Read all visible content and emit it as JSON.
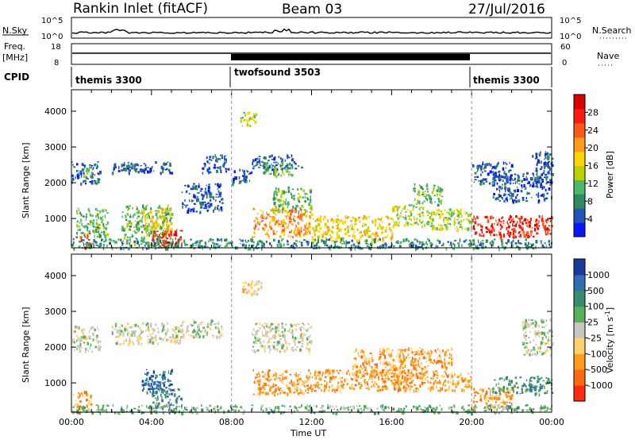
{
  "header": {
    "station": "Rankin Inlet (fitACF)",
    "beam": "Beam 03",
    "date": "27/Jul/2016"
  },
  "strips": {
    "nsky_label": "N.Sky",
    "nsearch_label": "N.Search",
    "noise_ticks_left": [
      "10^5",
      "10^0"
    ],
    "noise_ticks_right": [
      "10^5",
      "10^0"
    ],
    "freq_label": "Freq.",
    "freq_unit": "[MHz]",
    "freq_ticks": [
      "18",
      "8"
    ],
    "nave_label": "Nave",
    "nave_ticks": [
      "60",
      "0"
    ],
    "cpid_label": "CPID",
    "cpid_segments": [
      {
        "name": "themis 3300",
        "start": 0,
        "end": 8
      },
      {
        "name": "twofsound 3503",
        "start": 8,
        "end": 20
      },
      {
        "name": "themis 3300",
        "start": 20,
        "end": 24
      }
    ]
  },
  "chart_data": [
    {
      "type": "heatmap",
      "title": "",
      "xlabel": "Time UT",
      "ylabel": "Slant Range [km]",
      "xlim": [
        0,
        24
      ],
      "ylim": [
        180,
        4600
      ],
      "xticks": [
        "00:00",
        "04:00",
        "08:00",
        "12:00",
        "16:00",
        "20:00",
        "00:00"
      ],
      "yticks": [
        1000,
        2000,
        3000,
        4000
      ],
      "colorbar": {
        "label": "Power [dB]",
        "ticks": [
          "4",
          "8",
          "12",
          "16",
          "20",
          "24",
          "28"
        ],
        "colors": [
          "#0a14ff",
          "#2156b8",
          "#2f8a5e",
          "#4cb86a",
          "#b8d200",
          "#ffd400",
          "#ff9a1a",
          "#ff5a1a",
          "#ff1a10",
          "#dd0000"
        ]
      },
      "regions": [
        {
          "t": [
            0.0,
            1.4
          ],
          "r": [
            2000,
            2600
          ],
          "level": 1
        },
        {
          "t": [
            0.3,
            1.0
          ],
          "r": [
            2200,
            2500
          ],
          "level": 3
        },
        {
          "t": [
            0.2,
            1.8
          ],
          "r": [
            500,
            1300
          ],
          "level": 3
        },
        {
          "t": [
            0.4,
            1.0
          ],
          "r": [
            200,
            600
          ],
          "level": 7
        },
        {
          "t": [
            2.0,
            5.0
          ],
          "r": [
            2300,
            2600
          ],
          "level": 1
        },
        {
          "t": [
            2.5,
            3.5
          ],
          "r": [
            2350,
            2550
          ],
          "level": 2
        },
        {
          "t": [
            2.5,
            5.0
          ],
          "r": [
            300,
            1400
          ],
          "level": 3
        },
        {
          "t": [
            3.5,
            5.0
          ],
          "r": [
            700,
            1300
          ],
          "level": 5
        },
        {
          "t": [
            4.0,
            5.6
          ],
          "r": [
            200,
            700
          ],
          "level": 8
        },
        {
          "t": [
            5.5,
            7.5
          ],
          "r": [
            1200,
            2000
          ],
          "level": 1
        },
        {
          "t": [
            6.5,
            7.8
          ],
          "r": [
            2300,
            2800
          ],
          "level": 1
        },
        {
          "t": [
            8.0,
            9.0
          ],
          "r": [
            2000,
            2400
          ],
          "level": 1
        },
        {
          "t": [
            8.4,
            9.2
          ],
          "r": [
            3600,
            4000
          ],
          "level": 4
        },
        {
          "t": [
            9.0,
            11.5
          ],
          "r": [
            2400,
            2800
          ],
          "level": 1
        },
        {
          "t": [
            9.5,
            11.0
          ],
          "r": [
            2200,
            2600
          ],
          "level": 3
        },
        {
          "t": [
            10.0,
            12.0
          ],
          "r": [
            1200,
            1900
          ],
          "level": 3
        },
        {
          "t": [
            9.0,
            12.0
          ],
          "r": [
            500,
            1300
          ],
          "level": 6
        },
        {
          "t": [
            12.0,
            16.0
          ],
          "r": [
            400,
            1100
          ],
          "level": 5
        },
        {
          "t": [
            16.0,
            18.0
          ],
          "r": [
            800,
            1400
          ],
          "level": 4
        },
        {
          "t": [
            17.0,
            18.5
          ],
          "r": [
            1400,
            2000
          ],
          "level": 3
        },
        {
          "t": [
            18.0,
            20.0
          ],
          "r": [
            700,
            1300
          ],
          "level": 4
        },
        {
          "t": [
            20.0,
            22.0
          ],
          "r": [
            2000,
            2600
          ],
          "level": 1
        },
        {
          "t": [
            20.0,
            24.0
          ],
          "r": [
            500,
            1100
          ],
          "level": 8
        },
        {
          "t": [
            21.0,
            24.0
          ],
          "r": [
            1500,
            2300
          ],
          "level": 1
        },
        {
          "t": [
            23.0,
            24.0
          ],
          "r": [
            2000,
            2900
          ],
          "level": 1
        },
        {
          "t": [
            0.0,
            24.0
          ],
          "r": [
            180,
            450
          ],
          "level": 2
        }
      ]
    },
    {
      "type": "heatmap",
      "title": "",
      "xlabel": "Time UT",
      "ylabel": "Slant Range [km]",
      "xlim": [
        0,
        24
      ],
      "ylim": [
        180,
        4600
      ],
      "xticks": [
        "00:00",
        "04:00",
        "08:00",
        "12:00",
        "16:00",
        "20:00",
        "00:00"
      ],
      "yticks": [
        1000,
        2000,
        3000,
        4000
      ],
      "colorbar": {
        "label": "Velocity [m s^-1]",
        "ticks": [
          "1000",
          "500",
          "100",
          "25",
          "-25",
          "-100",
          "-500",
          "-1000"
        ],
        "colors": [
          "#1a3a9a",
          "#2f6fb0",
          "#3a8a6e",
          "#5ab05a",
          "#c8c8c0",
          "#ffd070",
          "#ff9a1a",
          "#ff6a10",
          "#ff2a10"
        ]
      },
      "regions": [
        {
          "t": [
            0.0,
            1.4
          ],
          "r": [
            1900,
            2600
          ],
          "level": 4
        },
        {
          "t": [
            0.0,
            1.0
          ],
          "r": [
            200,
            800
          ],
          "level": 6
        },
        {
          "t": [
            2.0,
            5.5
          ],
          "r": [
            2100,
            2700
          ],
          "level": 4
        },
        {
          "t": [
            3.5,
            5.0
          ],
          "r": [
            700,
            1400
          ],
          "level": 1
        },
        {
          "t": [
            4.0,
            5.5
          ],
          "r": [
            300,
            900
          ],
          "level": 2
        },
        {
          "t": [
            5.5,
            7.5
          ],
          "r": [
            2300,
            2800
          ],
          "level": 4
        },
        {
          "t": [
            8.5,
            9.5
          ],
          "r": [
            3500,
            3900
          ],
          "level": 5
        },
        {
          "t": [
            9.0,
            12.0
          ],
          "r": [
            1900,
            2700
          ],
          "level": 4
        },
        {
          "t": [
            9.0,
            12.0
          ],
          "r": [
            700,
            1400
          ],
          "level": 6
        },
        {
          "t": [
            12.0,
            17.0
          ],
          "r": [
            800,
            1400
          ],
          "level": 6
        },
        {
          "t": [
            14.0,
            19.0
          ],
          "r": [
            1200,
            2000
          ],
          "level": 6
        },
        {
          "t": [
            16.0,
            20.0
          ],
          "r": [
            800,
            1300
          ],
          "level": 6
        },
        {
          "t": [
            20.0,
            22.0
          ],
          "r": [
            300,
            900
          ],
          "level": 6
        },
        {
          "t": [
            21.0,
            24.0
          ],
          "r": [
            700,
            1200
          ],
          "level": 2
        },
        {
          "t": [
            22.5,
            24.0
          ],
          "r": [
            1800,
            2800
          ],
          "level": 4
        },
        {
          "t": [
            0.0,
            24.0
          ],
          "r": [
            180,
            400
          ],
          "level": 3
        }
      ]
    }
  ]
}
